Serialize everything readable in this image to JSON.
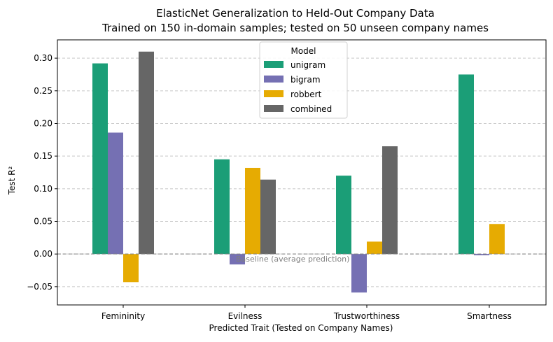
{
  "chart_data": {
    "type": "bar",
    "title": "ElasticNet Generalization to Held-Out Company Data",
    "subtitle": "Trained on 150 in-domain samples; tested on 50 unseen company names",
    "xlabel": "Predicted Trait (Tested on Company Names)",
    "ylabel": "Test R²",
    "ylim": [
      -0.078,
      0.328
    ],
    "yticks": [
      -0.05,
      0.0,
      0.05,
      0.1,
      0.15,
      0.2,
      0.25,
      0.3
    ],
    "ytick_labels": [
      "−0.05",
      "0.00",
      "0.05",
      "0.10",
      "0.15",
      "0.20",
      "0.25",
      "0.30"
    ],
    "categories": [
      "Femininity",
      "Evilness",
      "Trustworthiness",
      "Smartness"
    ],
    "series": [
      {
        "name": "unigram",
        "color": "#1b9e77",
        "values": [
          0.292,
          0.145,
          0.12,
          0.275
        ]
      },
      {
        "name": "bigram",
        "color": "#7570b3",
        "values": [
          0.186,
          -0.016,
          -0.059,
          -0.002
        ]
      },
      {
        "name": "robbert",
        "color": "#e6ab02",
        "values": [
          -0.043,
          0.132,
          0.019,
          0.046
        ]
      },
      {
        "name": "combined",
        "color": "#666666",
        "values": [
          0.31,
          0.114,
          0.165,
          0.0
        ]
      }
    ],
    "legend": {
      "title": "Model",
      "placement": "top-center"
    },
    "grid": {
      "y": true,
      "style": "dashed"
    },
    "annotations": [
      {
        "text": "Baseline (average prediction)",
        "y": 0.0
      }
    ],
    "baseline_color": "#808080"
  }
}
